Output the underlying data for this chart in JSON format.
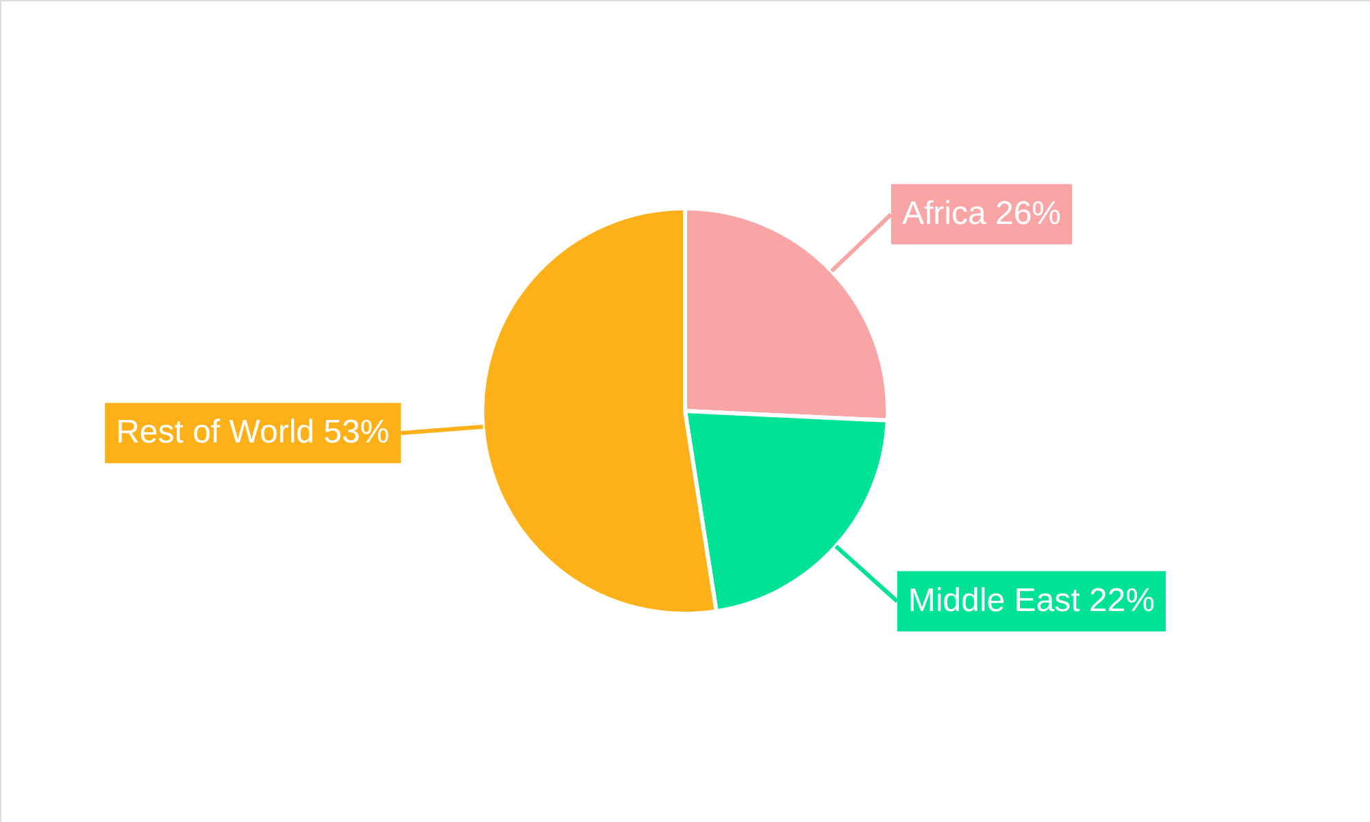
{
  "chart_data": {
    "type": "pie",
    "categories": [
      "Africa",
      "Middle East",
      "Rest of World"
    ],
    "values": [
      26,
      22,
      53
    ],
    "colors": [
      "#f9a5a6",
      "#00e396",
      "#feb019"
    ],
    "value_labels": [
      "26%",
      "22%",
      "53%"
    ]
  }
}
